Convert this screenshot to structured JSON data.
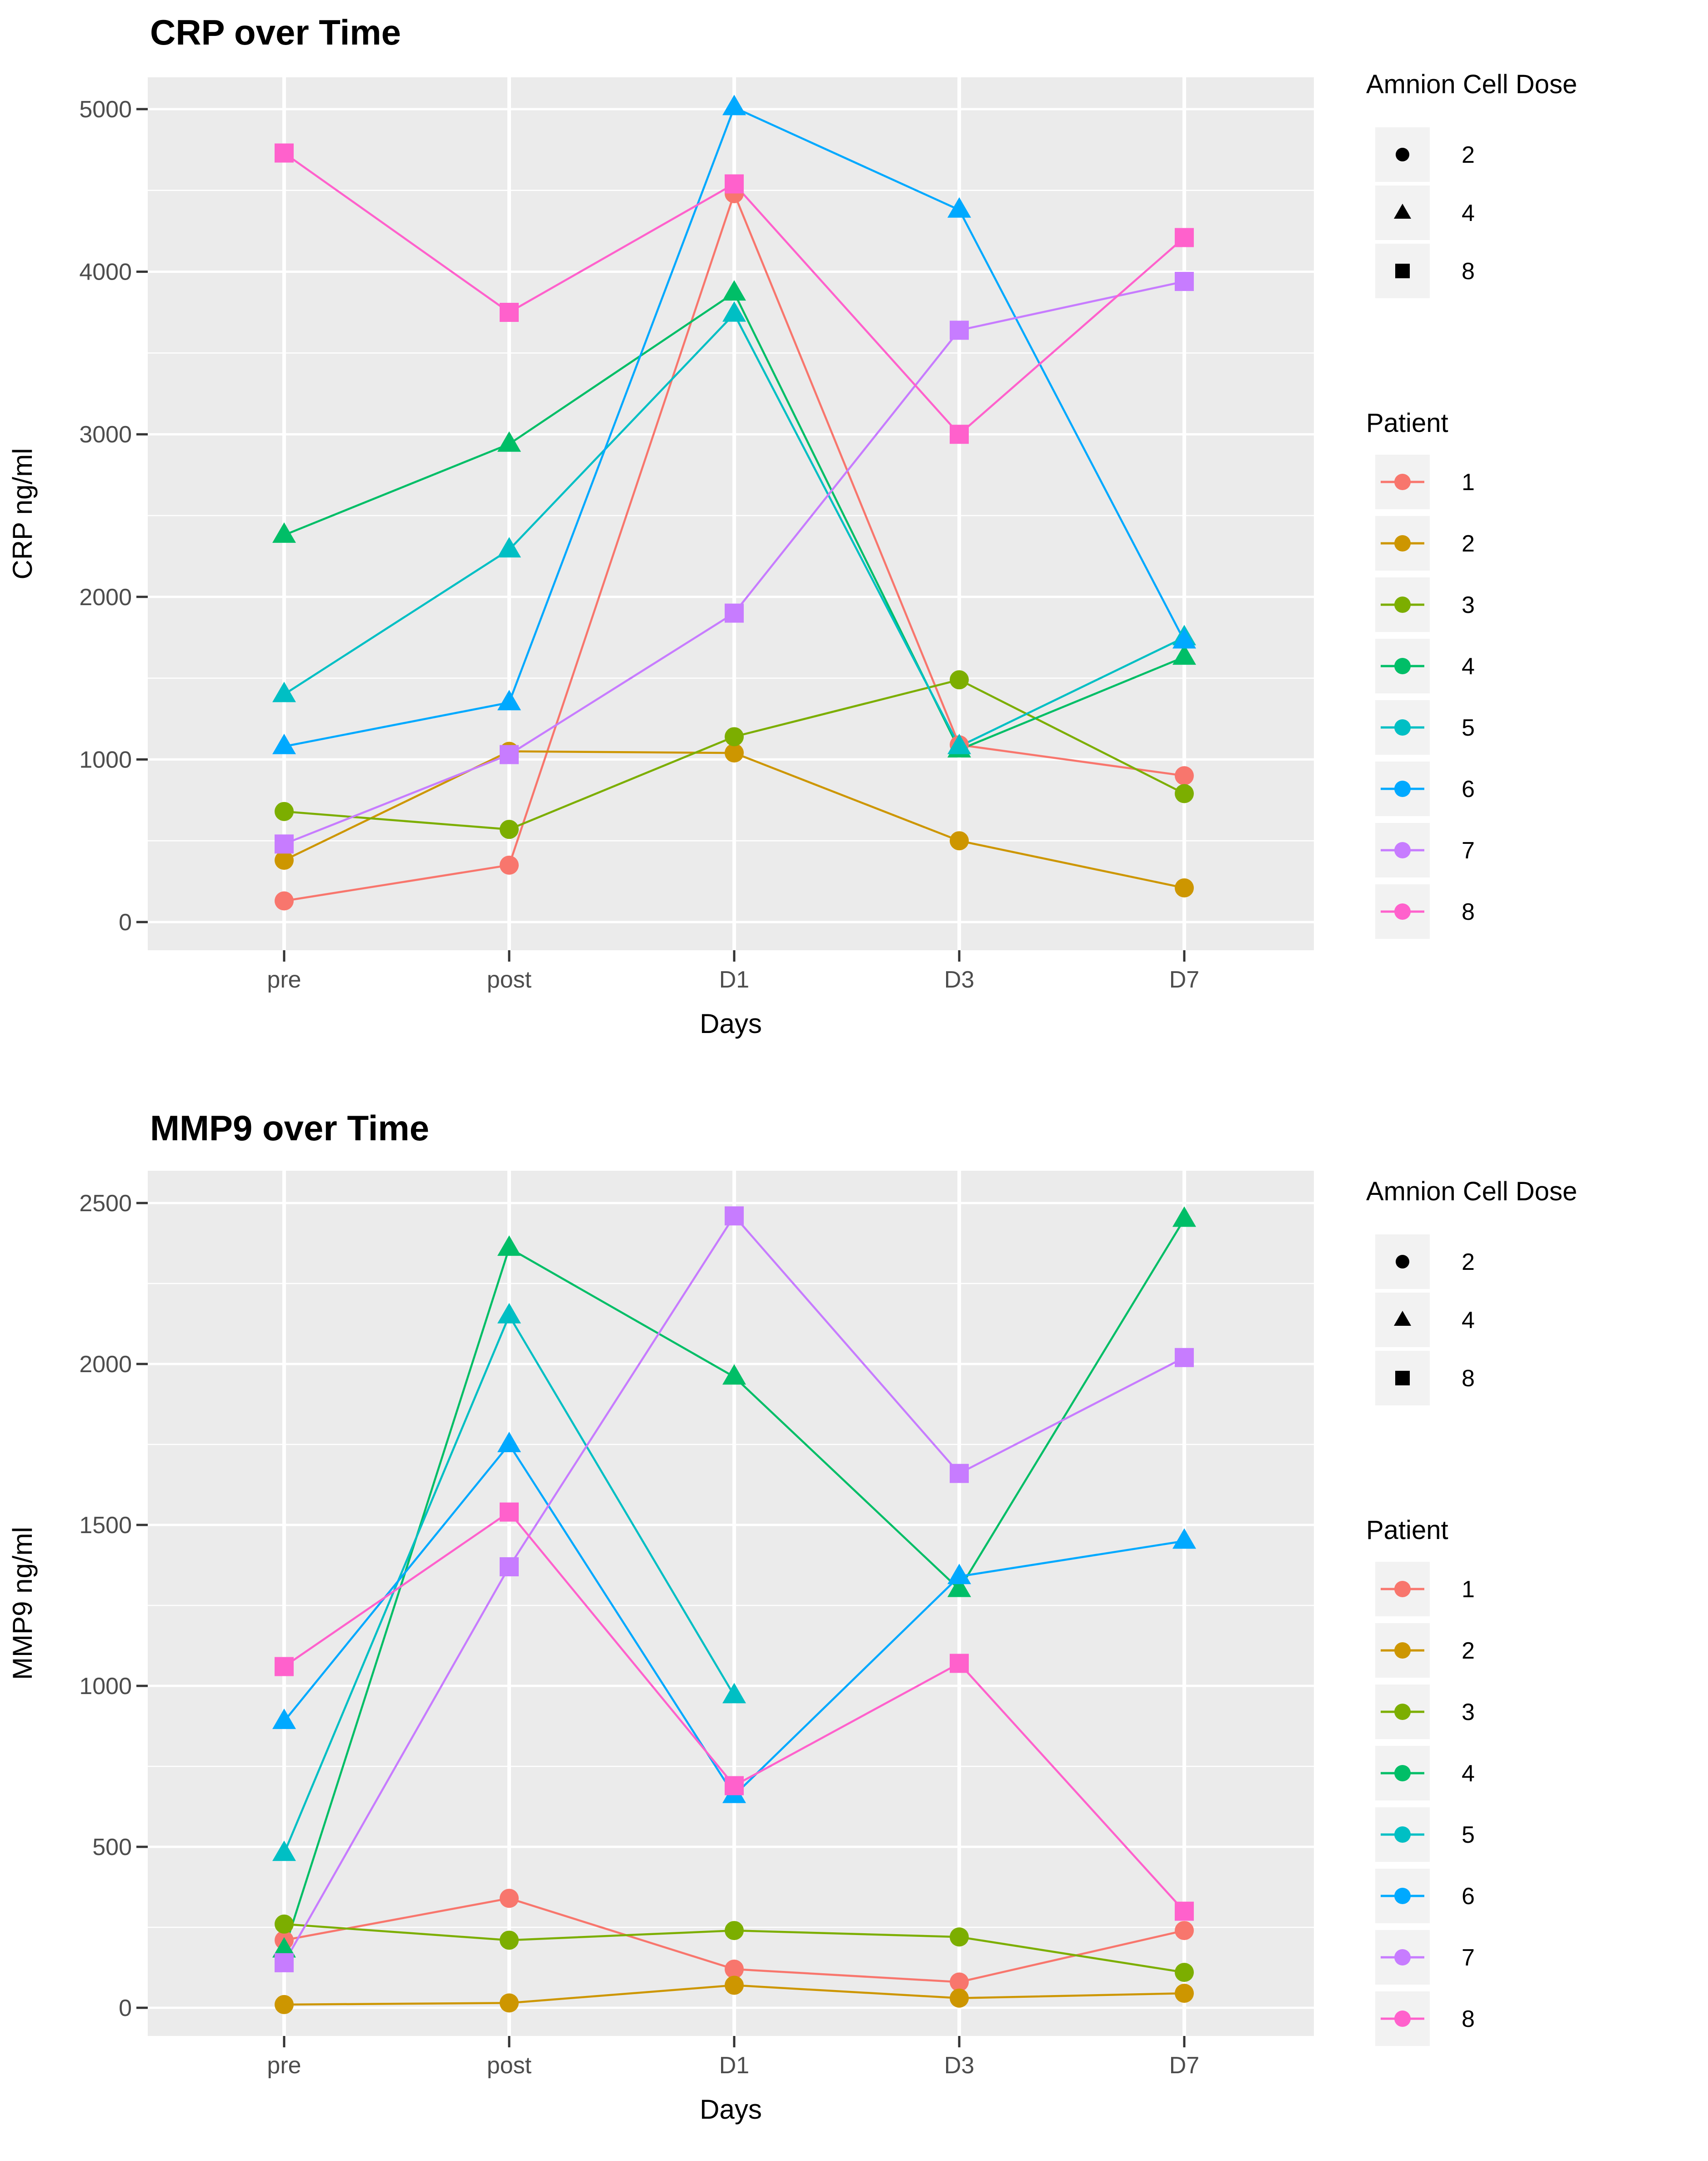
{
  "figure": {
    "background": "#FFFFFF",
    "panel_background": "#EBEBEB",
    "gridline_color": "#FFFFFF",
    "tick_label_color": "#4D4D4D",
    "axis_title_color": "#000000",
    "tick_mark_color": "#333333",
    "legend_key_background": "#F2F2F2"
  },
  "legend": {
    "dose_title": "Amnion Cell Dose",
    "dose_items": [
      {
        "label": "2",
        "shape": "circle"
      },
      {
        "label": "4",
        "shape": "triangle"
      },
      {
        "label": "8",
        "shape": "square"
      }
    ],
    "patient_title": "Patient",
    "patient_items": [
      {
        "label": "1",
        "color": "#F8766D"
      },
      {
        "label": "2",
        "color": "#CD9600"
      },
      {
        "label": "3",
        "color": "#7CAE00"
      },
      {
        "label": "4",
        "color": "#00BE67"
      },
      {
        "label": "5",
        "color": "#00BFC4"
      },
      {
        "label": "6",
        "color": "#00A9FF"
      },
      {
        "label": "7",
        "color": "#C77CFF"
      },
      {
        "label": "8",
        "color": "#FF61CC"
      }
    ]
  },
  "chart_data": [
    {
      "type": "line",
      "title": "CRP over Time",
      "xlabel": "Days",
      "ylabel": "CRP  ng/ml",
      "categories": [
        "pre",
        "post",
        "D1",
        "D3",
        "D7"
      ],
      "y_axis": {
        "min": 0,
        "max": 5000,
        "tick_step": 1000,
        "minor_step": 500,
        "tick_labels": [
          "0",
          "1000",
          "2000",
          "3000",
          "4000",
          "5000"
        ]
      },
      "grid": true,
      "legend_position": "right",
      "series": [
        {
          "name": "1",
          "dose": "2",
          "shape": "circle",
          "color": "#F8766D",
          "values": [
            130,
            350,
            4480,
            1090,
            900
          ]
        },
        {
          "name": "2",
          "dose": "2",
          "shape": "circle",
          "color": "#CD9600",
          "values": [
            380,
            1050,
            1040,
            500,
            210
          ]
        },
        {
          "name": "3",
          "dose": "2",
          "shape": "circle",
          "color": "#7CAE00",
          "values": [
            680,
            570,
            1140,
            1490,
            790
          ]
        },
        {
          "name": "4",
          "dose": "4",
          "shape": "triangle",
          "color": "#00BE67",
          "values": [
            2380,
            2940,
            3870,
            1060,
            1630
          ]
        },
        {
          "name": "5",
          "dose": "4",
          "shape": "triangle",
          "color": "#00BFC4",
          "values": [
            1400,
            2290,
            3740,
            1080,
            1750
          ]
        },
        {
          "name": "6",
          "dose": "4",
          "shape": "triangle",
          "color": "#00A9FF",
          "values": [
            1080,
            1350,
            5010,
            4380,
            1730
          ]
        },
        {
          "name": "7",
          "dose": "8",
          "shape": "square",
          "color": "#C77CFF",
          "values": [
            480,
            1030,
            1900,
            3640,
            3940
          ]
        },
        {
          "name": "8",
          "dose": "8",
          "shape": "square",
          "color": "#FF61CC",
          "values": [
            4730,
            3750,
            4540,
            3000,
            4210
          ]
        }
      ]
    },
    {
      "type": "line",
      "title": "MMP9 over Time",
      "xlabel": "Days",
      "ylabel": "MMP9  ng/ml",
      "categories": [
        "pre",
        "post",
        "D1",
        "D3",
        "D7"
      ],
      "y_axis": {
        "min": 0,
        "max": 2500,
        "tick_step": 500,
        "minor_step": 250,
        "tick_labels": [
          "0",
          "500",
          "1000",
          "1500",
          "2000",
          "2500"
        ]
      },
      "grid": true,
      "legend_position": "right",
      "series": [
        {
          "name": "1",
          "dose": "2",
          "shape": "circle",
          "color": "#F8766D",
          "values": [
            210,
            340,
            120,
            80,
            240
          ]
        },
        {
          "name": "2",
          "dose": "2",
          "shape": "circle",
          "color": "#CD9600",
          "values": [
            10,
            15,
            70,
            30,
            45
          ]
        },
        {
          "name": "3",
          "dose": "2",
          "shape": "circle",
          "color": "#7CAE00",
          "values": [
            260,
            210,
            240,
            220,
            110
          ]
        },
        {
          "name": "4",
          "dose": "4",
          "shape": "triangle",
          "color": "#00BE67",
          "values": [
            180,
            2360,
            1960,
            1300,
            2450
          ]
        },
        {
          "name": "5",
          "dose": "4",
          "shape": "triangle",
          "color": "#00BFC4",
          "values": [
            480,
            2150,
            970,
            null,
            null
          ]
        },
        {
          "name": "6",
          "dose": "4",
          "shape": "triangle",
          "color": "#00A9FF",
          "values": [
            890,
            1750,
            660,
            1340,
            1450
          ]
        },
        {
          "name": "7",
          "dose": "8",
          "shape": "square",
          "color": "#C77CFF",
          "values": [
            140,
            1370,
            2460,
            1660,
            2020
          ]
        },
        {
          "name": "8",
          "dose": "8",
          "shape": "square",
          "color": "#FF61CC",
          "values": [
            1060,
            1540,
            690,
            1070,
            300
          ]
        }
      ]
    }
  ]
}
